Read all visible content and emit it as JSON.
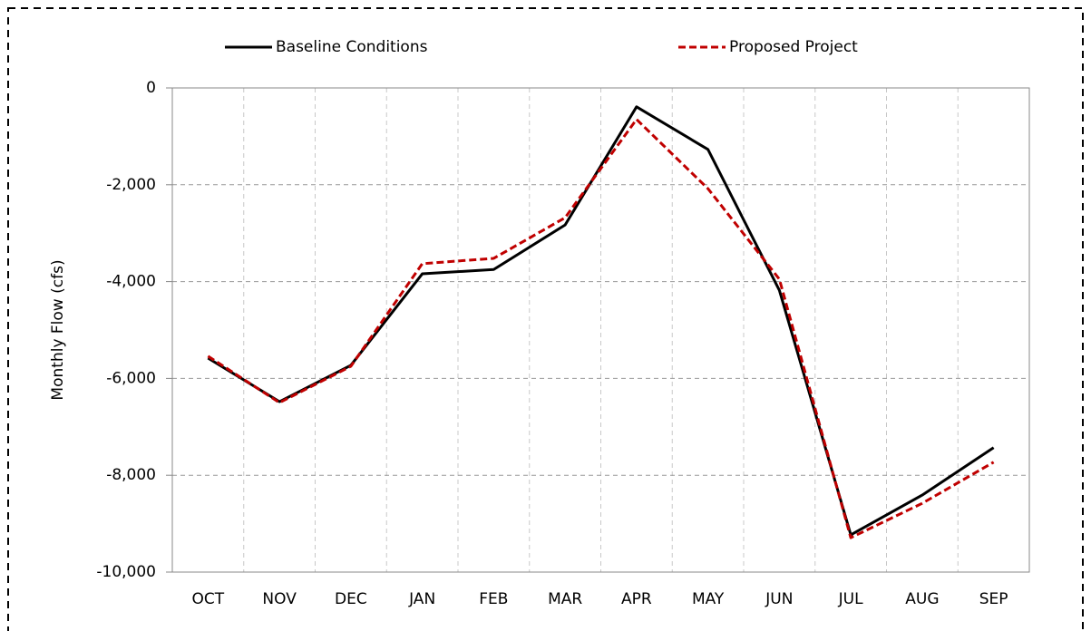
{
  "chart_data": {
    "type": "line",
    "y_label": "Monthly Flow (cfs)",
    "categories": [
      "OCT",
      "NOV",
      "DEC",
      "JAN",
      "FEB",
      "MAR",
      "APR",
      "MAY",
      "JUN",
      "JUL",
      "AUG",
      "SEP"
    ],
    "series": [
      {
        "name": "Baseline Conditions",
        "color": "#000000",
        "dash": false,
        "values": [
          -5580,
          -6480,
          -5730,
          -3840,
          -3750,
          -2830,
          -390,
          -1270,
          -4180,
          -9230,
          -8410,
          -7430
        ]
      },
      {
        "name": "Proposed Project",
        "color": "#c00000",
        "dash": true,
        "values": [
          -5540,
          -6500,
          -5750,
          -3630,
          -3520,
          -2680,
          -650,
          -2080,
          -3950,
          -9290,
          -8580,
          -7730
        ]
      }
    ],
    "ylim": [
      -10000,
      0
    ],
    "yticks": [
      {
        "value": -10000,
        "label": "-10,000"
      },
      {
        "value": -8000,
        "label": "-8,000"
      },
      {
        "value": -6000,
        "label": "-6,000"
      },
      {
        "value": -4000,
        "label": "-4,000"
      },
      {
        "value": -2000,
        "label": "-2,000"
      },
      0
    ],
    "grid": true,
    "legend": "top"
  }
}
